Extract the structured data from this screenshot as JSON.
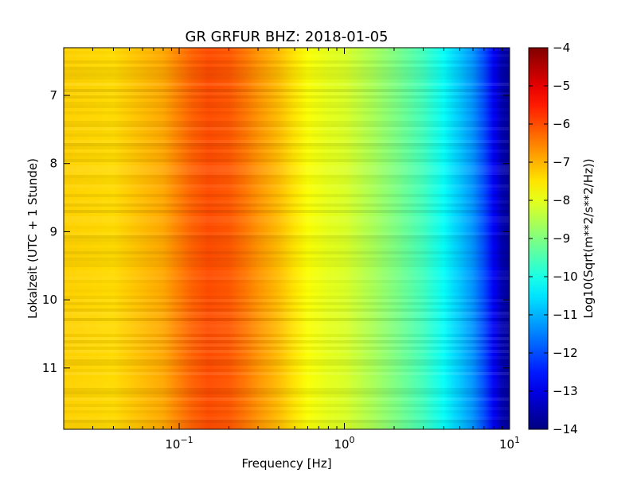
{
  "chart_data": {
    "type": "heatmap",
    "title": "GR GRFUR BHZ: 2018-01-05",
    "xlabel": "Frequency [Hz]",
    "ylabel": "Lokalzeit (UTC + 1 Stunde)",
    "x_scale": "log",
    "xlim": [
      0.02,
      10
    ],
    "ylim": [
      11.9,
      6.3
    ],
    "y_inverted": true,
    "x_ticks": [
      0.1,
      1,
      10
    ],
    "x_tick_labels": [
      {
        "base": "10",
        "exp": "−1"
      },
      {
        "base": "10",
        "exp": "0"
      },
      {
        "base": "10",
        "exp": "1"
      }
    ],
    "y_ticks": [
      7,
      8,
      9,
      10,
      11
    ],
    "y_tick_labels": [
      "7",
      "8",
      "9",
      "10",
      "11"
    ],
    "colorbar": {
      "label": "Log10(Sqrt(m**2/s**2/Hz))",
      "range": [
        -14,
        -4
      ],
      "ticks": [
        -4,
        -5,
        -6,
        -7,
        -8,
        -9,
        -10,
        -11,
        -12,
        -13,
        -14
      ],
      "tick_labels": [
        "−4",
        "−5",
        "−6",
        "−7",
        "−8",
        "−9",
        "−10",
        "−11",
        "−12",
        "−13",
        "−14"
      ],
      "colormap": "jet"
    },
    "spectrum_profile": {
      "frequency_hz": [
        0.02,
        0.04,
        0.06,
        0.08,
        0.1,
        0.12,
        0.15,
        0.2,
        0.25,
        0.3,
        0.4,
        0.5,
        0.6,
        0.7,
        0.8,
        1.0,
        1.5,
        2.0,
        3.0,
        4.0,
        5.0,
        6.0,
        7.0,
        8.0,
        9.0,
        10.0
      ],
      "log10_amplitude": [
        -7.3,
        -7.4,
        -7.1,
        -6.9,
        -6.5,
        -6.2,
        -6.0,
        -6.1,
        -6.4,
        -6.7,
        -7.1,
        -7.5,
        -7.8,
        -7.9,
        -8.0,
        -8.1,
        -8.6,
        -9.0,
        -9.6,
        -10.2,
        -10.8,
        -11.3,
        -12.0,
        -12.8,
        -13.5,
        -13.8
      ]
    }
  }
}
